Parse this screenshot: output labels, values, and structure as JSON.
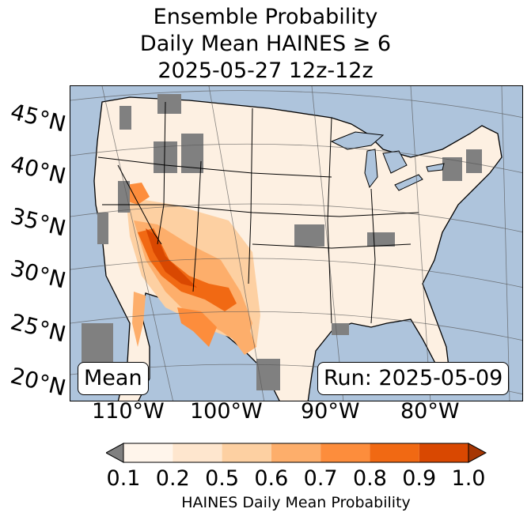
{
  "title": {
    "line1": "Ensemble Probability",
    "line2": "Daily Mean HAINES ≥ 6",
    "line3": "2025-05-27 12z-12z"
  },
  "map": {
    "label_left": "Mean",
    "label_right": "Run: 2025-05-09",
    "lat_labels": [
      "45°N",
      "40°N",
      "35°N",
      "30°N",
      "25°N",
      "20°N"
    ],
    "lon_labels": [
      "110°W",
      "100°W",
      "90°W",
      "80°W"
    ],
    "colors": {
      "ocean": "#aec4dc",
      "lake": "#aec4dc",
      "land_low": "#fdf0e2",
      "missing": "#808080"
    }
  },
  "colorbar": {
    "label": "HAINES Daily Mean Probability",
    "ticks": [
      "0.1",
      "0.2",
      "0.5",
      "0.6",
      "0.7",
      "0.8",
      "0.9",
      "1.0"
    ],
    "colors": [
      "#fff5eb",
      "#fee6ce",
      "#fdd0a2",
      "#fdae6b",
      "#fd8d3c",
      "#f16913",
      "#d94801",
      "#a63603"
    ],
    "under_color": "#808080"
  }
}
